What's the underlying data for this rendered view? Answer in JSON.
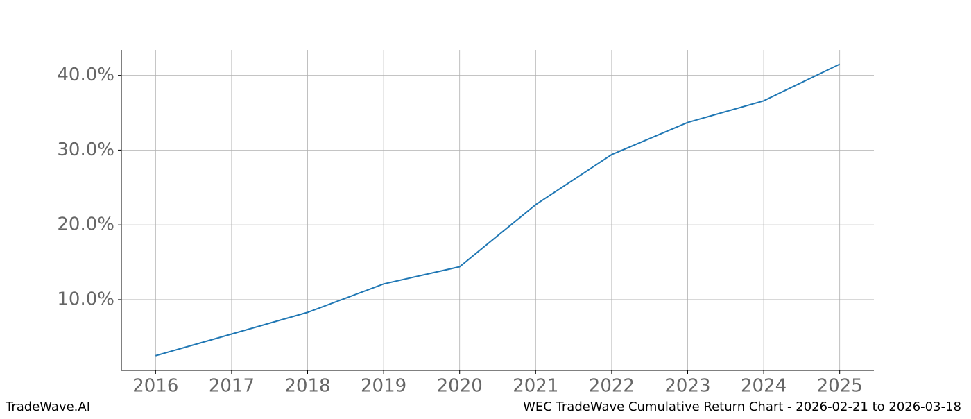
{
  "chart_data": {
    "type": "line",
    "title": "WEC TradeWave Cumulative Return Chart - 2026-02-21 to 2026-03-18",
    "watermark": "TradeWave.AI",
    "x": [
      2016,
      2017,
      2018,
      2019,
      2020,
      2021,
      2022,
      2023,
      2024,
      2025
    ],
    "series": [
      {
        "name": "WEC",
        "color": "#1f77b4",
        "values": [
          2.5,
          5.4,
          8.3,
          12.1,
          14.4,
          22.7,
          29.4,
          33.7,
          36.6,
          41.5
        ]
      }
    ],
    "xlim": [
      2015.55,
      2025.45
    ],
    "xticks": [
      2016,
      2017,
      2018,
      2019,
      2020,
      2021,
      2022,
      2023,
      2024,
      2025
    ],
    "ylim": [
      0.53,
      43.4
    ],
    "yticks": [
      {
        "value": 10,
        "label": "10.0%"
      },
      {
        "value": 20,
        "label": "20.0%"
      },
      {
        "value": 30,
        "label": "30.0%"
      },
      {
        "value": 40,
        "label": "40.0%"
      }
    ],
    "grid": true
  }
}
